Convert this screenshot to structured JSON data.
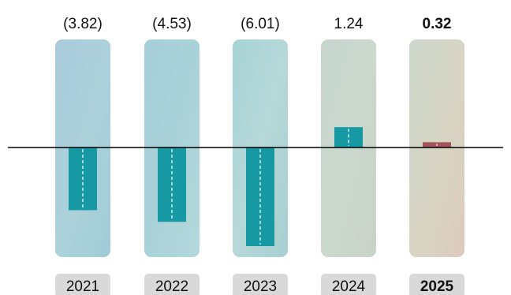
{
  "chart_data": {
    "type": "bar",
    "categories": [
      "2021",
      "2022",
      "2023",
      "2024",
      "2025"
    ],
    "values": [
      -3.82,
      -4.53,
      -6.01,
      1.24,
      0.32
    ],
    "value_labels": [
      "(3.82)",
      "(4.53)",
      "(6.01)",
      "1.24",
      "0.32"
    ],
    "highlight_index": 4,
    "colors": {
      "bar": "#1699a3",
      "highlight_bar": "#a3545b",
      "baseline": "#000000",
      "year_box": "#d9d9d9"
    },
    "grid": false,
    "legend": "none"
  }
}
